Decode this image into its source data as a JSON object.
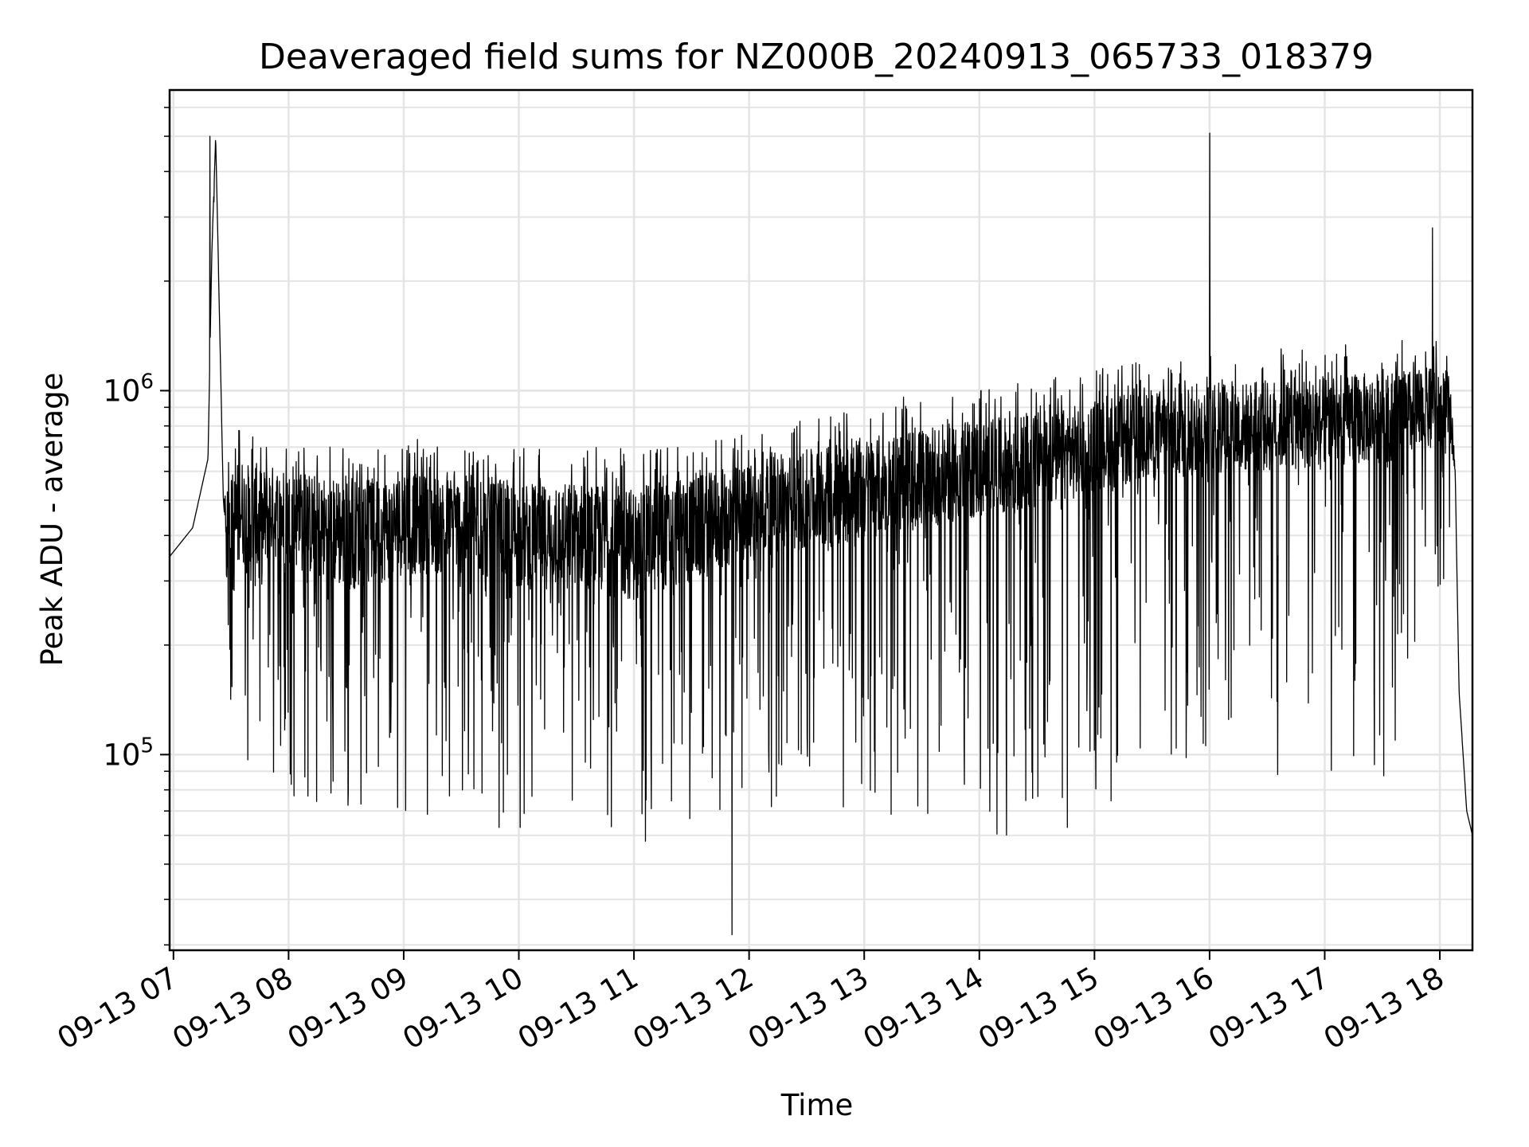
{
  "chart_data": {
    "type": "line",
    "title": "Deaveraged field sums for NZ000B_20240913_065733_018379",
    "xlabel": "Time",
    "ylabel": "Peak ADU - average",
    "x_ticks": [
      "09-13 07",
      "09-13 08",
      "09-13 09",
      "09-13 10",
      "09-13 11",
      "09-13 12",
      "09-13 13",
      "09-13 14",
      "09-13 15",
      "09-13 16",
      "09-13 17",
      "09-13 18"
    ],
    "y_ticks": [
      {
        "base": "10",
        "exp": "5",
        "value": 100000
      },
      {
        "base": "10",
        "exp": "6",
        "value": 1000000
      }
    ],
    "y_scale": "log",
    "xlim": [
      "2024-09-13 06:58",
      "2024-09-13 18:17"
    ],
    "ylim": [
      29000,
      6700000
    ],
    "grid": true,
    "line_color": "#000000",
    "series": [
      {
        "x": [
          "2024-09-13 06:58",
          "2024-09-13 07:10",
          "2024-09-13 07:18",
          "2024-09-13 07:20",
          "2024-09-13 07:22",
          "2024-09-13 07:26",
          "2024-09-13 07:30",
          "2024-09-13 07:35",
          "2024-09-13 07:40",
          "2024-09-13 07:45",
          "2024-09-13 07:50",
          "2024-09-13 08:00",
          "2024-09-13 08:15",
          "2024-09-13 08:30",
          "2024-09-13 08:45",
          "2024-09-13 09:00",
          "2024-09-13 09:15",
          "2024-09-13 09:30",
          "2024-09-13 09:45",
          "2024-09-13 10:00",
          "2024-09-13 10:15",
          "2024-09-13 10:30",
          "2024-09-13 10:45",
          "2024-09-13 11:00",
          "2024-09-13 11:15",
          "2024-09-13 11:30",
          "2024-09-13 11:45",
          "2024-09-13 12:00",
          "2024-09-13 12:15",
          "2024-09-13 12:30",
          "2024-09-13 12:45",
          "2024-09-13 13:00",
          "2024-09-13 13:15",
          "2024-09-13 13:30",
          "2024-09-13 13:45",
          "2024-09-13 14:00",
          "2024-09-13 14:15",
          "2024-09-13 14:30",
          "2024-09-13 14:45",
          "2024-09-13 15:00",
          "2024-09-13 15:15",
          "2024-09-13 15:30",
          "2024-09-13 15:45",
          "2024-09-13 16:00",
          "2024-09-13 16:15",
          "2024-09-13 16:30",
          "2024-09-13 16:45",
          "2024-09-13 17:00",
          "2024-09-13 17:15",
          "2024-09-13 17:30",
          "2024-09-13 17:45",
          "2024-09-13 18:00",
          "2024-09-13 18:05",
          "2024-09-13 18:08",
          "2024-09-13 18:10",
          "2024-09-13 18:14",
          "2024-09-13 18:17"
        ],
        "y": [
          350000,
          420000,
          650000,
          2400000,
          5000000,
          500000,
          300000,
          400000,
          350000,
          330000,
          400000,
          380000,
          350000,
          330000,
          340000,
          360000,
          360000,
          360000,
          350000,
          330000,
          330000,
          340000,
          320000,
          310000,
          330000,
          340000,
          370000,
          390000,
          410000,
          420000,
          430000,
          450000,
          470000,
          480000,
          500000,
          510000,
          520000,
          540000,
          560000,
          600000,
          620000,
          640000,
          650000,
          660000,
          670000,
          680000,
          690000,
          700000,
          710000,
          720000,
          740000,
          760000,
          800000,
          600000,
          150000,
          70000,
          60000
        ],
        "y_low": [
          350000,
          420000,
          650000,
          2400000,
          5000000,
          500000,
          130000,
          90000,
          75000,
          80000,
          70000,
          75000,
          70000,
          65000,
          68000,
          70000,
          68000,
          65000,
          63000,
          62000,
          60000,
          60000,
          58000,
          55000,
          58000,
          62000,
          65000,
          70000,
          72000,
          75000,
          72000,
          70000,
          68000,
          66000,
          62000,
          60000,
          60000,
          60000,
          62000,
          70000,
          75000,
          80000,
          80000,
          82000,
          85000,
          85000,
          85000,
          85000,
          85000,
          85000,
          90000,
          250000,
          380000,
          600000,
          150000,
          70000,
          60000
        ],
        "y_high": [
          350000,
          420000,
          650000,
          2400000,
          5000000,
          500000,
          800000,
          820000,
          800000,
          780000,
          760000,
          750000,
          740000,
          720000,
          720000,
          740000,
          730000,
          720000,
          720000,
          700000,
          690000,
          700000,
          700000,
          690000,
          700000,
          720000,
          750000,
          780000,
          820000,
          850000,
          880000,
          920000,
          950000,
          980000,
          1000000,
          1020000,
          1050000,
          1080000,
          1100000,
          1150000,
          1180000,
          1220000,
          1250000,
          1260000,
          1280000,
          1300000,
          1320000,
          1340000,
          1350000,
          1360000,
          1380000,
          1400000,
          1300000,
          600000,
          150000,
          70000,
          60000
        ],
        "spikes": [
          {
            "x": "2024-09-13 07:19",
            "y": 5000000
          },
          {
            "x": "2024-09-13 07:21",
            "y": 3300000
          },
          {
            "x": "2024-09-13 11:51",
            "y": 32000
          },
          {
            "x": "2024-09-13 16:00",
            "y": 5100000
          },
          {
            "x": "2024-09-13 17:56",
            "y": 2800000
          }
        ]
      }
    ]
  }
}
